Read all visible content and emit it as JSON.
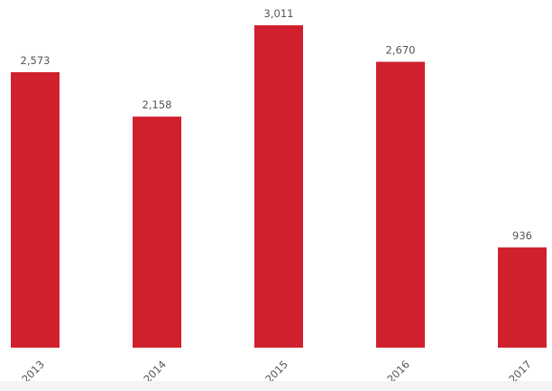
{
  "chart_data": {
    "type": "bar",
    "categories": [
      "2013",
      "2014",
      "2015",
      "2016",
      "2017"
    ],
    "values": [
      2573,
      2158,
      3011,
      2670,
      936
    ],
    "value_labels": [
      "2,573",
      "2,158",
      "3,011",
      "2,670",
      "936"
    ],
    "title": "",
    "xlabel": "",
    "ylabel": "",
    "ylim": [
      0,
      3011
    ],
    "grid": false,
    "legend": "none",
    "colors": {
      "bar": "#d0202e",
      "value_label": "#555555",
      "tick_label": "#555555",
      "background": "#ffffff",
      "bottom_band": "#f4f4f4"
    }
  }
}
